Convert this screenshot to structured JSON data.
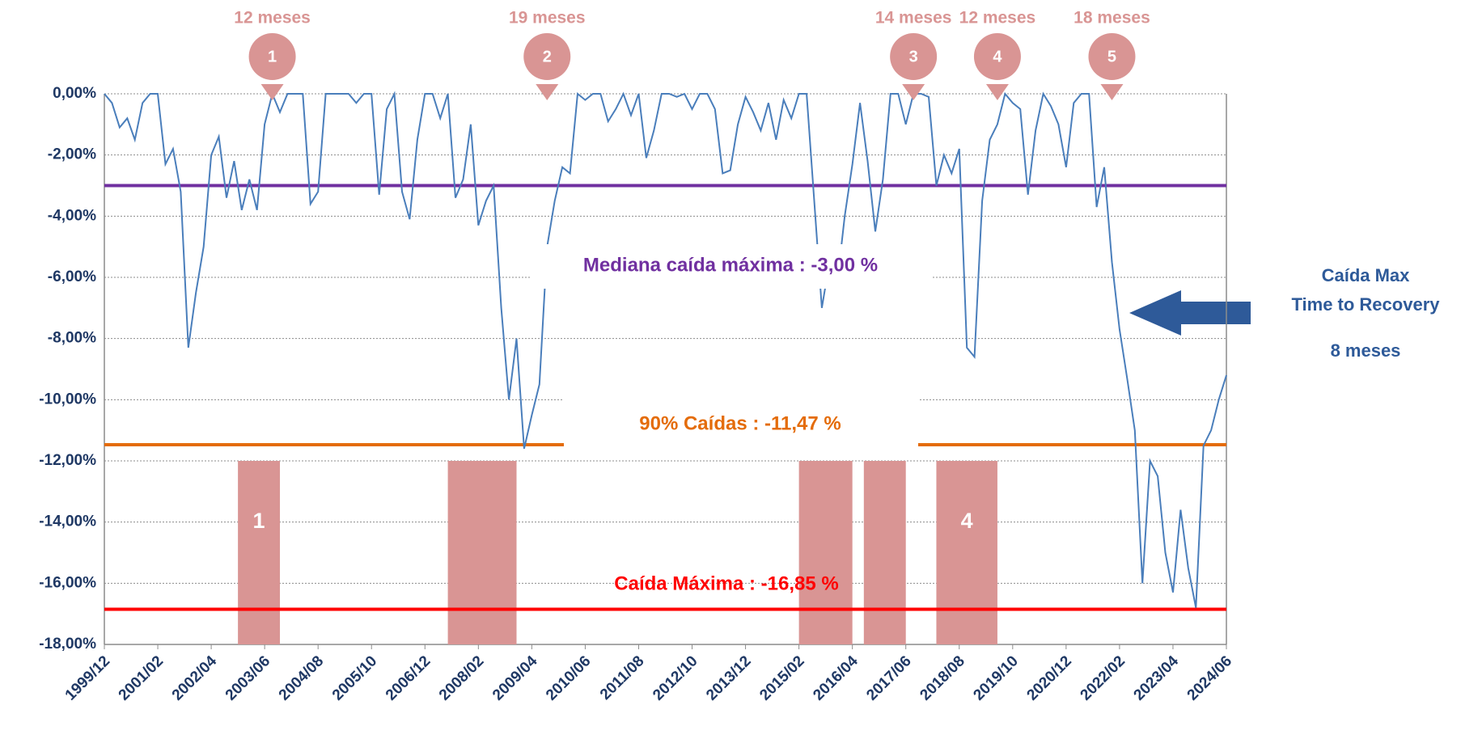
{
  "chart_data": {
    "type": "line",
    "color": "#4a7ebb",
    "x": [
      "1999/12",
      "2000/02",
      "2000/04",
      "2000/06",
      "2000/08",
      "2000/10",
      "2000/12",
      "2001/02",
      "2001/04",
      "2001/06",
      "2001/08",
      "2001/10",
      "2001/12",
      "2002/02",
      "2002/04",
      "2002/06",
      "2002/08",
      "2002/10",
      "2002/12",
      "2003/02",
      "2003/04",
      "2003/06",
      "2003/08",
      "2003/10",
      "2003/12",
      "2004/02",
      "2004/04",
      "2004/06",
      "2004/08",
      "2004/10",
      "2004/12",
      "2005/02",
      "2005/04",
      "2005/06",
      "2005/08",
      "2005/10",
      "2005/12",
      "2006/02",
      "2006/04",
      "2006/06",
      "2006/08",
      "2006/10",
      "2006/12",
      "2007/02",
      "2007/04",
      "2007/06",
      "2007/08",
      "2007/10",
      "2007/12",
      "2008/02",
      "2008/04",
      "2008/06",
      "2008/08",
      "2008/10",
      "2008/12",
      "2009/02",
      "2009/04",
      "2009/06",
      "2009/08",
      "2009/10",
      "2009/12",
      "2010/02",
      "2010/04",
      "2010/06",
      "2010/08",
      "2010/10",
      "2010/12",
      "2011/02",
      "2011/04",
      "2011/06",
      "2011/08",
      "2011/10",
      "2011/12",
      "2012/02",
      "2012/04",
      "2012/06",
      "2012/08",
      "2012/10",
      "2012/12",
      "2013/02",
      "2013/04",
      "2013/06",
      "2013/08",
      "2013/10",
      "2013/12",
      "2014/02",
      "2014/04",
      "2014/06",
      "2014/08",
      "2014/10",
      "2014/12",
      "2015/02",
      "2015/04",
      "2015/06",
      "2015/08",
      "2015/10",
      "2015/12",
      "2016/02",
      "2016/04",
      "2016/06",
      "2016/08",
      "2016/10",
      "2016/12",
      "2017/02",
      "2017/04",
      "2017/06",
      "2017/08",
      "2017/10",
      "2017/12",
      "2018/02",
      "2018/04",
      "2018/06",
      "2018/08",
      "2018/10",
      "2018/12",
      "2019/02",
      "2019/04",
      "2019/06",
      "2019/08",
      "2019/10",
      "2019/12",
      "2020/02",
      "2020/04",
      "2020/06",
      "2020/08",
      "2020/10",
      "2020/12",
      "2021/02",
      "2021/04",
      "2021/06",
      "2021/08",
      "2021/10",
      "2021/12",
      "2022/02",
      "2022/04",
      "2022/06",
      "2022/08",
      "2022/10",
      "2022/12",
      "2023/02",
      "2023/04",
      "2023/06",
      "2023/08",
      "2023/10",
      "2023/12",
      "2024/02",
      "2024/04",
      "2024/06"
    ],
    "values": [
      0,
      -0.3,
      -1.1,
      -0.8,
      -1.5,
      -0.3,
      0,
      0,
      -2.3,
      -1.8,
      -3.2,
      -8.3,
      -6.5,
      -5,
      -2,
      -1.4,
      -3.4,
      -2.2,
      -3.8,
      -2.8,
      -3.8,
      -1,
      0,
      -0.6,
      0,
      0,
      0,
      -3.6,
      -3.2,
      0,
      0,
      0,
      0,
      -0.3,
      0,
      0,
      -3.3,
      -0.5,
      0,
      -3.2,
      -4.1,
      -1.5,
      0,
      0,
      -0.8,
      0,
      -3.4,
      -2.8,
      -1,
      -4.3,
      -3.5,
      -3,
      -7,
      -10,
      -8,
      -11.6,
      -10.5,
      -9.5,
      -5,
      -3.5,
      -2.4,
      -2.6,
      0,
      -0.2,
      0,
      0,
      -0.9,
      -0.5,
      0,
      -0.7,
      0,
      -2.1,
      -1.2,
      0,
      0,
      -0.1,
      0,
      -0.5,
      0,
      0,
      -0.5,
      -2.6,
      -2.5,
      -1,
      -0.1,
      -0.6,
      -1.2,
      -0.3,
      -1.5,
      -0.2,
      -0.8,
      0,
      0,
      -3.5,
      -7,
      -5.5,
      -6.2,
      -4,
      -2.3,
      -0.3,
      -2.2,
      -4.5,
      -2.8,
      0,
      0,
      -1,
      0,
      0,
      -0.1,
      -3,
      -2,
      -2.6,
      -1.8,
      -8.3,
      -8.6,
      -3.5,
      -1.5,
      -1,
      0,
      -0.3,
      -0.5,
      -3.3,
      -1.2,
      0,
      -0.4,
      -1,
      -2.4,
      -0.3,
      0,
      0,
      -3.7,
      -2.4,
      -5.5,
      -7.7,
      -9.3,
      -11,
      -16,
      -12,
      -12.5,
      -15,
      -16.3,
      -13.6,
      -15.5,
      -16.8,
      -11.5,
      -11,
      -10,
      -9.2
    ],
    "xlim": [
      "1999/12",
      "2024/06"
    ],
    "xticks": [
      "1999/12",
      "2001/02",
      "2002/04",
      "2003/06",
      "2004/08",
      "2005/10",
      "2006/12",
      "2008/02",
      "2009/04",
      "2010/06",
      "2011/08",
      "2012/10",
      "2013/12",
      "2015/02",
      "2016/04",
      "2017/06",
      "2018/08",
      "2019/10",
      "2020/12",
      "2022/02",
      "2023/04",
      "2024/06"
    ],
    "ylim": [
      -18,
      0
    ],
    "yticks": [
      {
        "value": 0,
        "label": "0,00%"
      },
      {
        "value": -2,
        "label": "-2,00%"
      },
      {
        "value": -4,
        "label": "-4,00%"
      },
      {
        "value": -6,
        "label": "-6,00%"
      },
      {
        "value": -8,
        "label": "-8,00%"
      },
      {
        "value": -10,
        "label": "-10,00%"
      },
      {
        "value": -12,
        "label": "-12,00%"
      },
      {
        "value": -14,
        "label": "-14,00%"
      },
      {
        "value": -16,
        "label": "-16,00%"
      },
      {
        "value": -18,
        "label": "-18,00%"
      }
    ],
    "grid": true,
    "reference_lines": [
      {
        "value": -3,
        "label": "Mediana caída máxima : -3,00 %",
        "color": "#7030a0"
      },
      {
        "value": -11.47,
        "label": "90% Caídas : -11,47 %",
        "color": "#e46c0a"
      },
      {
        "value": -16.85,
        "label": "Caída Máxima : -16,85 %",
        "color": "#ff0000"
      }
    ],
    "period_range": [
      -12,
      -18
    ],
    "period_color": "#d99594",
    "periods": [
      {
        "start": "2002/11",
        "end": "2003/10",
        "label": "1"
      },
      {
        "start": "2007/06",
        "end": "2008/12"
      },
      {
        "start": "2015/02",
        "end": "2016/04"
      },
      {
        "start": "2016/07",
        "end": "2017/06"
      },
      {
        "start": "2018/02",
        "end": "2019/06",
        "label": "4"
      }
    ],
    "recoveries": [
      {
        "number": "1",
        "duration": "12 meses",
        "date": "2003/08"
      },
      {
        "number": "2",
        "duration": "19 meses",
        "date": "2009/08"
      },
      {
        "number": "3",
        "duration": "14 meses",
        "date": "2017/08"
      },
      {
        "number": "4",
        "duration": "12 meses",
        "date": "2019/06"
      },
      {
        "number": "5",
        "duration": "18 meses",
        "date": "2021/12"
      }
    ],
    "annotation": {
      "lines": [
        "Caída Max",
        "Time to Recovery",
        "8 meses"
      ],
      "color": "#2e5a99"
    }
  }
}
